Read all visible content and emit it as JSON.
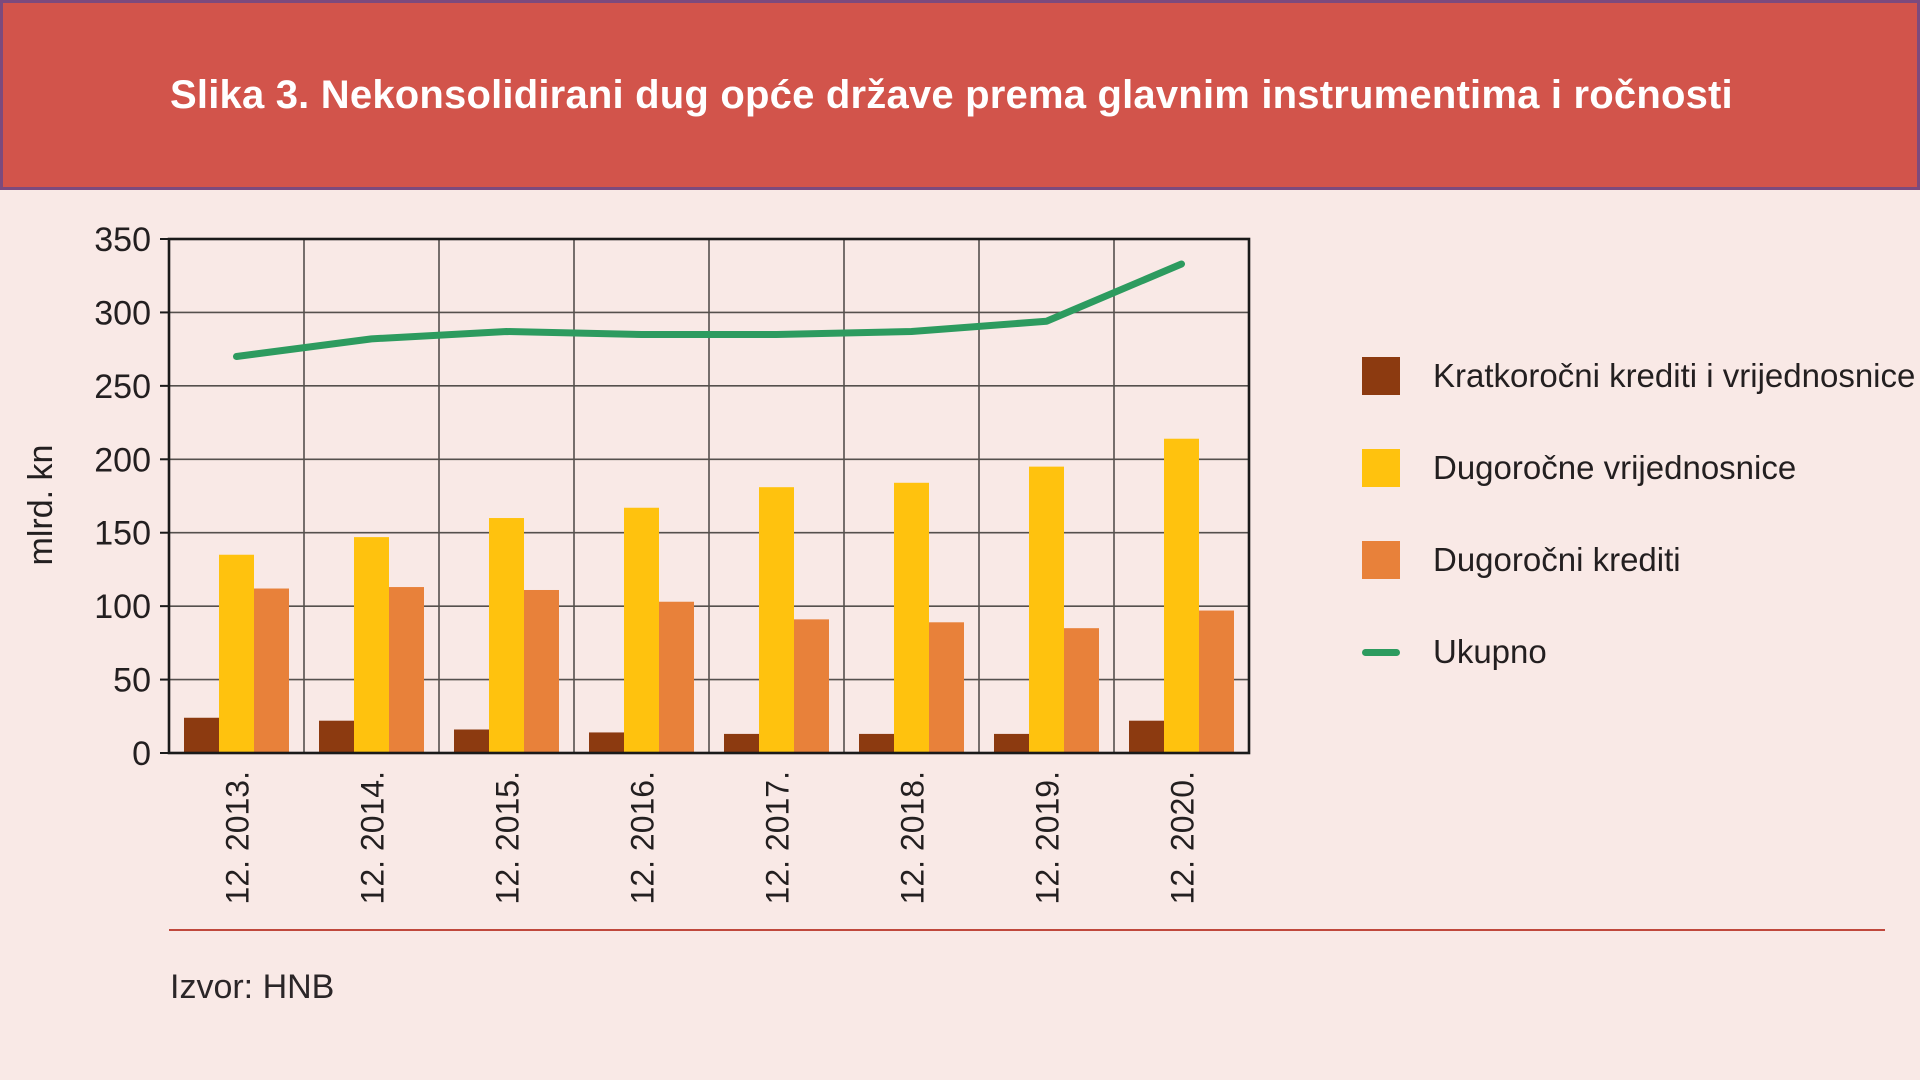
{
  "banner": {
    "title": "Slika 3. Nekonsolidirani dug opće države prema glavnim instrumentima i ročnosti"
  },
  "source": {
    "label": "Izvor: HNB"
  },
  "colors": {
    "banner_bg": "#d2544b",
    "banner_border": "#7c4a7d",
    "page_bg": "#f9e9e6",
    "grid": "#55504d",
    "axis": "#1a1a1a",
    "text": "#231f20",
    "separator": "#c0483c"
  },
  "chart_data": {
    "type": "bar",
    "title": "Slika 3. Nekonsolidirani dug opće države prema glavnim instrumentima i ročnosti",
    "xlabel": "",
    "ylabel": "mlrd. kn",
    "ylim": [
      0,
      350
    ],
    "ytick_step": 50,
    "grid": true,
    "legend_position": "right",
    "categories": [
      "12. 2013.",
      "12. 2014.",
      "12. 2015.",
      "12. 2016.",
      "12. 2017.",
      "12. 2018.",
      "12. 2019.",
      "12. 2020."
    ],
    "series": [
      {
        "name": "Kratkoročni krediti i vrijednosnice",
        "type": "bar",
        "color": "#8c3a10",
        "values": [
          24,
          22,
          16,
          14,
          13,
          13,
          13,
          22
        ]
      },
      {
        "name": "Dugoročne vrijednosnice",
        "type": "bar",
        "color": "#ffc20e",
        "values": [
          135,
          147,
          160,
          167,
          181,
          184,
          195,
          214
        ]
      },
      {
        "name": "Dugoročni krediti",
        "type": "bar",
        "color": "#e8813a",
        "values": [
          112,
          113,
          111,
          103,
          91,
          89,
          85,
          97
        ]
      },
      {
        "name": "Ukupno",
        "type": "line",
        "color": "#2d9b5f",
        "values": [
          270,
          282,
          287,
          285,
          285,
          287,
          294,
          333
        ]
      }
    ]
  }
}
